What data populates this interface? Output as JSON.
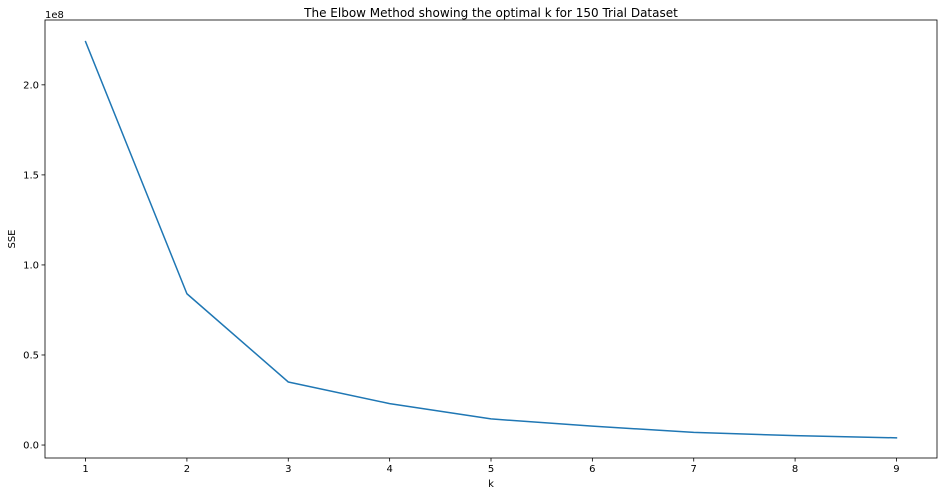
{
  "chart_data": {
    "type": "line",
    "title": "The Elbow Method showing the optimal k for 150 Trial Dataset",
    "xlabel": "k",
    "ylabel": "SSE",
    "y_offset_label": "1e8",
    "x": [
      1,
      2,
      3,
      4,
      5,
      6,
      7,
      8,
      9
    ],
    "series": [
      {
        "values": [
          224000000,
          84000000,
          35000000,
          23000000,
          14500000,
          10500000,
          7000000,
          5200000,
          4000000
        ],
        "color": "#1f77b4"
      }
    ],
    "xlim": [
      0.6,
      9.4
    ],
    "ylim": [
      -7200000,
      236000000
    ],
    "xticks": [
      1,
      2,
      3,
      4,
      5,
      6,
      7,
      8,
      9
    ],
    "xtick_labels": [
      "1",
      "2",
      "3",
      "4",
      "5",
      "6",
      "7",
      "8",
      "9"
    ],
    "yticks": [
      0,
      50000000,
      100000000,
      150000000,
      200000000
    ],
    "ytick_labels": [
      "0.0",
      "0.5",
      "1.0",
      "1.5",
      "2.0"
    ],
    "grid": false,
    "legend": "none"
  }
}
